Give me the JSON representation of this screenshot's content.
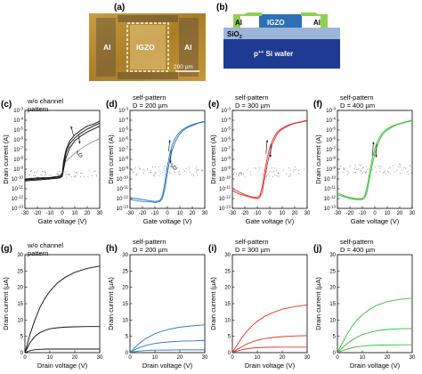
{
  "panel_a": {
    "label": "(a)",
    "left_label": "Al",
    "center_label": "IGZO",
    "right_label": "Al",
    "scale_bar": "200 µm"
  },
  "panel_b": {
    "label": "(b)",
    "al_left": "Al",
    "igzo": "IGZO",
    "al_right": "Al",
    "sio2": "SiO",
    "sio2_sub": "2",
    "wafer_pre": "p",
    "wafer_sup": "++",
    "wafer_post": " Si wafer",
    "colors": {
      "al": "#8fd14f",
      "igzo": "#2e6fb6",
      "sio2": "#9db6d6",
      "wafer": "#1f3a93"
    }
  },
  "chart_data": [
    {
      "id": "c",
      "label": "(c)",
      "type": "line",
      "scale": "log",
      "annotation": [
        "w/o channel",
        "pattern"
      ],
      "current_label": "I",
      "current_sub": "G",
      "color": "#111111",
      "xlabel": "Gate voltage (V)",
      "ylabel": "Drain current (A)",
      "xlim": [
        -30,
        30
      ],
      "ylim_exp": [
        -13,
        -3
      ],
      "xticks": [
        "-30",
        "-20",
        "-10",
        "0",
        "10",
        "20",
        "30"
      ],
      "yticks": [
        "10-13",
        "10-12",
        "10-11",
        "10-10",
        "10-9",
        "10-8",
        "10-7",
        "10-6",
        "10-5",
        "10-4",
        "10-3"
      ],
      "series": [
        {
          "x": [
            -30,
            -20,
            -10,
            -2,
            0,
            1,
            3,
            6,
            10,
            15,
            20,
            25,
            30
          ],
          "y": [
            -10.1,
            -10.0,
            -9.9,
            -9.8,
            -9.6,
            -8.6,
            -7.3,
            -6.4,
            -5.8,
            -5.3,
            -4.9,
            -4.6,
            -4.3
          ]
        },
        {
          "x": [
            -30,
            -20,
            -10,
            -2,
            0,
            1,
            3,
            6,
            10,
            15,
            20,
            25,
            30
          ],
          "y": [
            -10.0,
            -9.9,
            -9.85,
            -9.7,
            -9.4,
            -8.2,
            -7.0,
            -6.1,
            -5.5,
            -5.0,
            -4.6,
            -4.4,
            -4.1
          ]
        },
        {
          "x": [
            -30,
            -20,
            -10,
            -2,
            0,
            1,
            3,
            6,
            10,
            15,
            20,
            25,
            30
          ],
          "y": [
            -10.2,
            -10.1,
            -10.0,
            -9.9,
            -9.7,
            -9.0,
            -7.8,
            -6.8,
            -6.1,
            -5.6,
            -5.2,
            -4.9,
            -4.6
          ]
        }
      ],
      "ig_series": {
        "x": [
          3,
          8,
          14,
          20,
          26,
          30
        ],
        "y": [
          -8.2,
          -7.6,
          -7.0,
          -6.5,
          -6.1,
          -5.9
        ]
      },
      "noise": {
        "y_center": -9.5,
        "spread": 0.35
      }
    },
    {
      "id": "d",
      "label": "(d)",
      "type": "line",
      "scale": "log",
      "annotation": [
        "self-pattern",
        "D = 200 µm"
      ],
      "current_label": "I",
      "current_sub": "G",
      "color": "#2f7bc4",
      "xlabel": "Gate voltage (V)",
      "ylabel": "Drain current (A)",
      "xlim": [
        -30,
        30
      ],
      "ylim_exp": [
        -13,
        -3
      ],
      "xticks": [
        "-30",
        "-20",
        "-10",
        "0",
        "10",
        "20",
        "30"
      ],
      "yticks": [
        "10-13",
        "10-12",
        "10-11",
        "10-10",
        "10-9",
        "10-8",
        "10-7",
        "10-6",
        "10-5",
        "10-4",
        "10-3"
      ],
      "series": [
        {
          "x": [
            -30,
            -25,
            -20,
            -15,
            -10,
            -6,
            -4,
            -2,
            0,
            2,
            4,
            6,
            8,
            10,
            13,
            17,
            21,
            25,
            30
          ],
          "y": [
            -11.9,
            -12.0,
            -12.1,
            -12.2,
            -12.3,
            -12.2,
            -11.7,
            -10.4,
            -8.7,
            -7.4,
            -6.5,
            -5.9,
            -5.5,
            -5.2,
            -4.9,
            -4.6,
            -4.4,
            -4.25,
            -4.1
          ]
        },
        {
          "x": [
            -30,
            -25,
            -20,
            -15,
            -10,
            -6,
            -4,
            -2,
            0,
            2,
            4,
            6,
            8,
            10,
            13,
            17,
            21,
            25,
            30
          ],
          "y": [
            -12.1,
            -12.2,
            -12.3,
            -12.3,
            -12.4,
            -12.3,
            -12.0,
            -11.0,
            -9.4,
            -8.0,
            -7.0,
            -6.3,
            -5.8,
            -5.4,
            -5.0,
            -4.7,
            -4.5,
            -4.3,
            -4.15
          ]
        }
      ],
      "arrow_up": {
        "x": [
          1,
          2
        ],
        "y": [
          -7.2,
          -6.0
        ]
      },
      "arrow_down": {
        "x": [
          3,
          2.5
        ],
        "y": [
          -7.0,
          -8.4
        ]
      },
      "noise": {
        "y_center": -9.2,
        "spread": 0.5
      }
    },
    {
      "id": "e",
      "label": "(e)",
      "type": "line",
      "scale": "log",
      "annotation": [
        "self-pattern",
        "D = 300 µm"
      ],
      "color": "#e03a2b",
      "xlabel": "Gate voltage (V)",
      "ylabel": "Drain current (A)",
      "xlim": [
        -30,
        30
      ],
      "ylim_exp": [
        -13,
        -3
      ],
      "xticks": [
        "-30",
        "-20",
        "-10",
        "0",
        "10",
        "20",
        "30"
      ],
      "yticks": [
        "10-13",
        "10-12",
        "10-11",
        "10-10",
        "10-9",
        "10-8",
        "10-7",
        "10-6",
        "10-5",
        "10-4",
        "10-3"
      ],
      "series": [
        {
          "x": [
            -30,
            -25,
            -20,
            -15,
            -10,
            -8,
            -6,
            -4,
            -2,
            0,
            2,
            4,
            6,
            9,
            13,
            17,
            21,
            25,
            30
          ],
          "y": [
            -11.0,
            -11.3,
            -11.6,
            -11.8,
            -11.9,
            -11.7,
            -10.8,
            -9.2,
            -7.8,
            -6.8,
            -6.1,
            -5.6,
            -5.2,
            -4.9,
            -4.6,
            -4.4,
            -4.25,
            -4.15,
            -4.0
          ]
        },
        {
          "x": [
            -30,
            -25,
            -20,
            -15,
            -10,
            -8,
            -6,
            -4,
            -2,
            0,
            2,
            4,
            6,
            9,
            13,
            17,
            21,
            25,
            30
          ],
          "y": [
            -11.2,
            -11.5,
            -11.7,
            -11.9,
            -12.0,
            -11.9,
            -11.3,
            -9.9,
            -8.5,
            -7.4,
            -6.5,
            -5.9,
            -5.4,
            -5.0,
            -4.7,
            -4.45,
            -4.3,
            -4.2,
            -4.05
          ]
        }
      ],
      "arrow_up": {
        "x": [
          -3,
          -2
        ],
        "y": [
          -7.4,
          -6.0
        ]
      },
      "arrow_down": {
        "x": [
          1,
          0.5
        ],
        "y": [
          -6.4,
          -7.8
        ]
      },
      "noise": {
        "y_center": -9.3,
        "spread": 0.5
      }
    },
    {
      "id": "f",
      "label": "(f)",
      "type": "line",
      "scale": "log",
      "annotation": [
        "self-pattern",
        "D = 400 µm"
      ],
      "color": "#3fbf3f",
      "xlabel": "Gate voltage (V)",
      "ylabel": "Drain current (A)",
      "xlim": [
        -30,
        30
      ],
      "ylim_exp": [
        -13,
        -3
      ],
      "xticks": [
        "-30",
        "-20",
        "-10",
        "0",
        "10",
        "20",
        "30"
      ],
      "yticks": [
        "10-13",
        "10-12",
        "10-11",
        "10-10",
        "10-9",
        "10-8",
        "10-7",
        "10-6",
        "10-5",
        "10-4",
        "10-3"
      ],
      "series": [
        {
          "x": [
            -30,
            -25,
            -20,
            -15,
            -10,
            -8,
            -6,
            -4,
            -2,
            0,
            2,
            4,
            6,
            9,
            13,
            17,
            21,
            25,
            30
          ],
          "y": [
            -11.4,
            -11.7,
            -11.9,
            -12.0,
            -12.0,
            -11.7,
            -10.7,
            -9.2,
            -7.9,
            -6.9,
            -6.2,
            -5.7,
            -5.3,
            -4.95,
            -4.65,
            -4.45,
            -4.3,
            -4.15,
            -4.0
          ]
        },
        {
          "x": [
            -30,
            -25,
            -20,
            -15,
            -10,
            -8,
            -6,
            -4,
            -2,
            0,
            2,
            4,
            6,
            9,
            13,
            17,
            21,
            25,
            30
          ],
          "y": [
            -11.6,
            -11.8,
            -12.0,
            -12.1,
            -12.1,
            -11.9,
            -11.2,
            -9.8,
            -8.5,
            -7.4,
            -6.6,
            -6.0,
            -5.5,
            -5.1,
            -4.75,
            -4.5,
            -4.35,
            -4.2,
            -4.05
          ]
        }
      ],
      "arrow_up": {
        "x": [
          -2,
          -1
        ],
        "y": [
          -7.6,
          -6.2
        ]
      },
      "arrow_down": {
        "x": [
          1.5,
          1
        ],
        "y": [
          -6.4,
          -7.8
        ]
      },
      "noise": {
        "y_center": -9.0,
        "spread": 0.5
      }
    },
    {
      "id": "g",
      "label": "(g)",
      "type": "line",
      "scale": "linear",
      "annotation": [
        "w/o channel",
        "pattern"
      ],
      "color": "#111111",
      "xlabel": "Drain voltage (V)",
      "ylabel": "Drain current (µA)",
      "xlim": [
        0,
        30
      ],
      "ylim": [
        0,
        30
      ],
      "xticks": [
        "0",
        "10",
        "20",
        "30"
      ],
      "yticks": [
        "0",
        "5",
        "10",
        "15",
        "20",
        "25",
        "30"
      ],
      "series": [
        {
          "x": [
            0,
            2,
            4,
            6,
            8,
            10,
            13,
            16,
            20,
            25,
            30
          ],
          "y": [
            0,
            5.5,
            10,
            13.8,
            16.6,
            18.8,
            21.3,
            23.0,
            24.6,
            25.8,
            26.5
          ]
        },
        {
          "x": [
            0,
            2,
            4,
            6,
            8,
            10,
            13,
            16,
            20,
            25,
            30
          ],
          "y": [
            0,
            3.0,
            5.0,
            6.1,
            6.8,
            7.3,
            7.6,
            7.8,
            7.9,
            8.0,
            8.0
          ]
        },
        {
          "x": [
            0,
            2,
            4,
            6,
            8,
            10,
            13,
            16,
            20,
            25,
            30
          ],
          "y": [
            0,
            0.6,
            0.9,
            1.0,
            1.05,
            1.1,
            1.1,
            1.1,
            1.1,
            1.1,
            1.1
          ]
        }
      ]
    },
    {
      "id": "h",
      "label": "(h)",
      "type": "line",
      "scale": "linear",
      "annotation": [
        "self-pattern",
        "D = 200 µm"
      ],
      "color": "#2f7bc4",
      "xlabel": "Drain voltage (V)",
      "ylabel": "Drain current (µA)",
      "xlim": [
        0,
        30
      ],
      "ylim": [
        0,
        30
      ],
      "xticks": [
        "0",
        "10",
        "20",
        "30"
      ],
      "yticks": [
        "0",
        "5",
        "10",
        "15",
        "20",
        "25",
        "30"
      ],
      "series": [
        {
          "x": [
            0,
            2,
            4,
            6,
            8,
            10,
            13,
            16,
            20,
            25,
            30
          ],
          "y": [
            0,
            1.6,
            3.0,
            4.1,
            5.0,
            5.8,
            6.6,
            7.2,
            7.8,
            8.2,
            8.5
          ]
        },
        {
          "x": [
            0,
            2,
            4,
            6,
            8,
            10,
            13,
            16,
            20,
            25,
            30
          ],
          "y": [
            0,
            0.9,
            1.6,
            2.1,
            2.5,
            2.8,
            3.1,
            3.3,
            3.5,
            3.6,
            3.7
          ]
        },
        {
          "x": [
            0,
            2,
            4,
            6,
            8,
            10,
            13,
            16,
            20,
            25,
            30
          ],
          "y": [
            0,
            0.3,
            0.5,
            0.6,
            0.7,
            0.75,
            0.8,
            0.8,
            0.85,
            0.85,
            0.85
          ]
        }
      ]
    },
    {
      "id": "i",
      "label": "(i)",
      "type": "line",
      "scale": "linear",
      "annotation": [
        "self-pattern",
        "D = 300 µm"
      ],
      "color": "#e03a2b",
      "xlabel": "Drain voltage (V)",
      "ylabel": "Drain current (µA)",
      "xlim": [
        0,
        30
      ],
      "ylim": [
        0,
        30
      ],
      "xticks": [
        "0",
        "10",
        "20",
        "30"
      ],
      "yticks": [
        "0",
        "5",
        "10",
        "15",
        "20",
        "25",
        "30"
      ],
      "series": [
        {
          "x": [
            0,
            2,
            4,
            6,
            8,
            10,
            13,
            16,
            20,
            25,
            30
          ],
          "y": [
            0,
            2.5,
            4.8,
            6.7,
            8.3,
            9.6,
            11.1,
            12.2,
            13.3,
            14.1,
            14.6
          ]
        },
        {
          "x": [
            0,
            2,
            4,
            6,
            8,
            10,
            13,
            16,
            20,
            25,
            30
          ],
          "y": [
            0,
            1.0,
            1.9,
            2.7,
            3.3,
            3.8,
            4.3,
            4.6,
            4.9,
            5.1,
            5.2
          ]
        },
        {
          "x": [
            0,
            2,
            4,
            6,
            8,
            10,
            13,
            16,
            20,
            25,
            30
          ],
          "y": [
            0,
            0.5,
            0.9,
            1.2,
            1.4,
            1.5,
            1.6,
            1.65,
            1.7,
            1.7,
            1.7
          ]
        }
      ]
    },
    {
      "id": "j",
      "label": "(j)",
      "type": "line",
      "scale": "linear",
      "annotation": [
        "self-pattern",
        "D = 400 µm"
      ],
      "color": "#3fbf3f",
      "xlabel": "Drain voltage (V)",
      "ylabel": "Drain current (µA)",
      "xlim": [
        0,
        30
      ],
      "ylim": [
        0,
        30
      ],
      "xticks": [
        "0",
        "10",
        "20",
        "30"
      ],
      "yticks": [
        "0",
        "5",
        "10",
        "15",
        "20",
        "25",
        "30"
      ],
      "series": [
        {
          "x": [
            0,
            2,
            4,
            6,
            8,
            10,
            13,
            16,
            20,
            25,
            30
          ],
          "y": [
            0,
            3.0,
            5.8,
            8.2,
            10.1,
            11.6,
            13.3,
            14.6,
            15.6,
            16.3,
            16.7
          ]
        },
        {
          "x": [
            0,
            2,
            4,
            6,
            8,
            10,
            13,
            16,
            20,
            25,
            30
          ],
          "y": [
            0,
            1.5,
            2.8,
            3.9,
            4.8,
            5.5,
            6.2,
            6.7,
            7.1,
            7.3,
            7.4
          ]
        },
        {
          "x": [
            0,
            2,
            4,
            6,
            8,
            10,
            13,
            16,
            20,
            25,
            30
          ],
          "y": [
            0,
            0.6,
            1.1,
            1.5,
            1.8,
            2.0,
            2.2,
            2.3,
            2.35,
            2.4,
            2.4
          ]
        }
      ]
    }
  ]
}
